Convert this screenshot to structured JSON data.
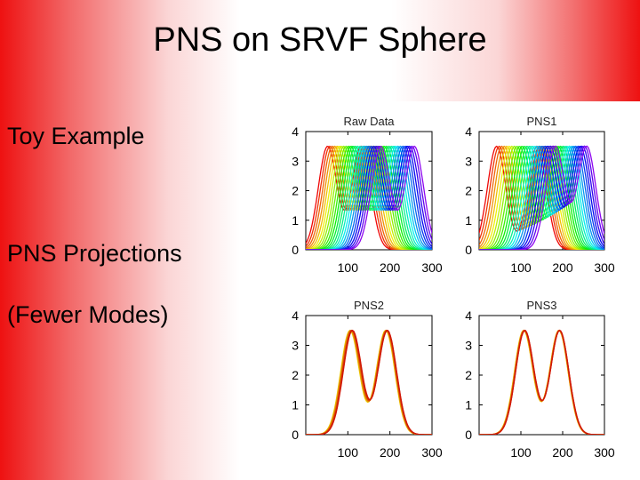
{
  "slide": {
    "title": "PNS on SRVF Sphere",
    "bullets": [
      "Toy Example",
      "PNS Projections",
      "(Fewer Modes)"
    ]
  },
  "colors": {
    "background_edge": "#ee1111",
    "background_center": "#ffffff"
  },
  "chart_data": [
    {
      "type": "line",
      "title": "Raw Data",
      "xlim": [
        0,
        300
      ],
      "ylim": [
        0,
        4
      ],
      "x_ticks": [
        "100",
        "200",
        "300"
      ],
      "y_ticks": [
        "0",
        "1",
        "2",
        "3",
        "4"
      ],
      "colormap": "rainbow",
      "n_curves": 24,
      "description_values": {
        "peak_height": 3.5,
        "first_peak_x_range": [
          40,
          180
        ],
        "second_peak_x_range": [
          120,
          260
        ]
      }
    },
    {
      "type": "line",
      "title": "PNS1",
      "xlim": [
        0,
        300
      ],
      "ylim": [
        0,
        4
      ],
      "x_ticks": [
        "100",
        "200",
        "300"
      ],
      "y_ticks": [
        "0",
        "1",
        "2",
        "3",
        "4"
      ],
      "colormap": "rainbow",
      "n_curves": 24
    },
    {
      "type": "line",
      "title": "PNS2",
      "xlim": [
        0,
        300
      ],
      "ylim": [
        0,
        4
      ],
      "x_ticks": [
        "100",
        "200",
        "300"
      ],
      "y_ticks": [
        "0",
        "1",
        "2",
        "3",
        "4"
      ],
      "colormap": "yellow-red",
      "n_curves": 12
    },
    {
      "type": "line",
      "title": "PNS3",
      "xlim": [
        0,
        300
      ],
      "ylim": [
        0,
        4
      ],
      "x_ticks": [
        "100",
        "200",
        "300"
      ],
      "y_ticks": [
        "0",
        "1",
        "2",
        "3",
        "4"
      ],
      "colormap": "yellow-red",
      "n_curves": 12
    }
  ]
}
